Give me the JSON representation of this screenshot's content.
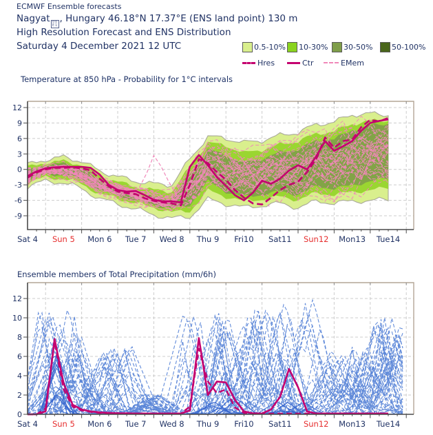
{
  "header": {
    "product": "ECMWF Ensemble forecasts",
    "location_prefix": "Nagyat",
    "missing_glyph_hex": [
      "0",
      "0",
      "E",
      "1"
    ],
    "location_suffix": ", Hungary 46.18°N 17.37°E (ENS land point) 130 m",
    "subtitle": "High Resolution Forecast and ENS Distribution",
    "run_date": "Saturday  4 December 2021 12 UTC"
  },
  "legend": {
    "classes": [
      {
        "label": "0.5-10%",
        "color": "#d9ef8d"
      },
      {
        "label": "10-30%",
        "color": "#8ad31e"
      },
      {
        "label": "30-50%",
        "color": "#7f9e4a"
      },
      {
        "label": "50-100%",
        "color": "#4a661b"
      }
    ],
    "lines": [
      {
        "label": "Hres",
        "style": "bold-dashed"
      },
      {
        "label": "Ctr",
        "style": "bold-solid"
      },
      {
        "label": "EMem",
        "style": "thin-dashed"
      }
    ]
  },
  "colors": {
    "navy_text": "#203264",
    "sunday_red": "#e62e2e",
    "crimson_line": "#c4006f",
    "emem_pink": "#f087b9",
    "prob_light": "#d9ef8d",
    "prob_mid": "#97d42c",
    "prob_olive": "#7f9e4a",
    "member_blue_dashed": "#5b86d8",
    "member_blue_solid": "#3565ce",
    "grid_gray": "#cccccc",
    "axis_dark": "#4a4a4a",
    "border_tan": "#b3a596"
  },
  "chart_data": [
    {
      "type": "area",
      "title": "Temperature at 850 hPa - Probability for 1°C intervals",
      "x_day_labels": [
        "Sat 4",
        "Sun 5",
        "Mon 6",
        "Tue 7",
        "Wed 8",
        "Thu 9",
        "Fri10",
        "Sat11",
        "Sun12",
        "Mon13",
        "Tue14"
      ],
      "sunday_indices": [
        1,
        8
      ],
      "ylabel_unit": "°C",
      "yticks": [
        -9,
        -6,
        -3,
        0,
        3,
        6,
        9,
        12
      ],
      "ylim": [
        -11.6,
        13.8
      ],
      "t_step_bands": 0.5,
      "t_step_lines": 0.25,
      "band_outer_top": [
        0.9,
        1.9,
        2.4,
        1.6,
        -0.3,
        -1.4,
        -2.3,
        -2.8,
        -3.0,
        2.0,
        6.4,
        6.0,
        5.2,
        5.6,
        6.6,
        7.2,
        8.7,
        9.2,
        10.6,
        10.8,
        10.6
      ],
      "band_outer_bottom": [
        -3.4,
        -2.2,
        -2.6,
        -3.7,
        -5.7,
        -6.7,
        -7.7,
        -8.8,
        -9.5,
        -9.2,
        -5.8,
        -6.7,
        -7.4,
        -7.0,
        -6.6,
        -7.4,
        -6.2,
        -6.5,
        -6.2,
        -6.0,
        -5.9
      ],
      "band_mid_top": [
        0.4,
        1.3,
        1.6,
        0.9,
        -1.3,
        -2.4,
        -3.4,
        -4.0,
        -4.3,
        0.4,
        5.2,
        4.6,
        3.2,
        3.8,
        4.8,
        5.5,
        6.9,
        7.4,
        8.8,
        9.4,
        9.5
      ],
      "band_mid_bottom": [
        -2.7,
        -1.5,
        -1.8,
        -2.8,
        -4.8,
        -5.6,
        -6.6,
        -7.4,
        -8.3,
        -8.1,
        -4.1,
        -5.3,
        -6.1,
        -5.8,
        -5.3,
        -5.9,
        -4.6,
        -4.9,
        -4.4,
        -4.0,
        -3.6
      ],
      "band_inner_top": [
        -0.4,
        0.9,
        1.1,
        0.4,
        -2.3,
        -3.4,
        -4.9,
        -5.4,
        -5.6,
        -1.0,
        3.9,
        2.7,
        1.3,
        2.1,
        3.3,
        3.9,
        5.5,
        5.9,
        7.6,
        8.5,
        8.9
      ],
      "band_inner_bottom": [
        -2.3,
        -0.9,
        -1.1,
        -2.0,
        -4.1,
        -5.0,
        -6.1,
        -6.9,
        -7.6,
        -6.9,
        -2.3,
        -4.3,
        -5.3,
        -4.9,
        -4.3,
        -4.9,
        -3.3,
        -3.7,
        -3.1,
        -2.3,
        -1.7
      ],
      "ctr": [
        -1.3,
        -0.4,
        0.2,
        0.4,
        0.5,
        0.5,
        0.5,
        0.3,
        -1.0,
        -3.0,
        -4.0,
        -4.3,
        -4.2,
        -5.0,
        -5.9,
        -6.2,
        -6.2,
        -6.4,
        0.5,
        2.8,
        0.8,
        -1.5,
        -3.2,
        -5.0,
        -6.0,
        -4.5,
        -2.2,
        -2.8,
        -1.8,
        -0.2,
        0.8,
        0.0,
        2.5,
        5.5,
        3.6,
        4.5,
        5.5,
        7.5,
        9.0,
        9.4,
        9.7
      ],
      "hres": [
        -1.6,
        -0.6,
        0.0,
        0.3,
        0.3,
        0.4,
        0.2,
        -0.2,
        -1.8,
        -3.3,
        -4.3,
        -4.6,
        -4.8,
        -5.6,
        -6.1,
        -6.4,
        -6.6,
        -7.0,
        -3.0,
        2.0,
        1.2,
        -0.5,
        -2.0,
        -4.0,
        -5.5,
        -6.6,
        -6.8,
        -5.5,
        -4.0,
        -3.0,
        -2.4,
        -0.5,
        2.0,
        6.2,
        4.2,
        5.5,
        5.8,
        8.2,
        9.6,
        9.3,
        10.0
      ],
      "emem_outliers": [
        [
          [
            3.1,
            -3.5
          ],
          [
            3.3,
            -0.8
          ],
          [
            3.5,
            2.7
          ],
          [
            3.7,
            0.6
          ],
          [
            3.9,
            -2.2
          ],
          [
            4.1,
            -4.6
          ]
        ],
        [
          [
            5.9,
            2.5
          ],
          [
            6.3,
            -2.0
          ],
          [
            6.7,
            -7.2
          ]
        ]
      ],
      "n_members": 40
    },
    {
      "type": "line",
      "title": "Ensemble members of Total Precipitation (mm/6h)",
      "x_day_labels": [
        "Sat 4",
        "Sun 5",
        "Mon 6",
        "Tue 7",
        "Wed 8",
        "Thu 9",
        "Fri10",
        "Sat11",
        "Sun12",
        "Mon13",
        "Tue14"
      ],
      "sunday_indices": [
        1,
        8
      ],
      "ylabel_unit": "mm/6h",
      "yticks": [
        0,
        2,
        4,
        6,
        8,
        10,
        12
      ],
      "ylim": [
        0,
        13.6
      ],
      "t_step_lines": 0.25,
      "ctr": [
        0,
        0,
        0.3,
        7.8,
        3.2,
        1.0,
        0.5,
        0.3,
        0.2,
        0.15,
        0.1,
        0.1,
        0.08,
        0.08,
        0.08,
        0.08,
        0.08,
        0.08,
        0.4,
        7.9,
        2.0,
        3.4,
        3.3,
        1.5,
        0.3,
        0.1,
        0.08,
        0.5,
        1.8,
        4.7,
        2.8,
        0.3,
        0.08,
        0.08,
        0.08,
        0.08,
        0.08,
        0.08,
        0.08,
        0.08,
        0.08
      ],
      "hres": [
        0,
        0,
        0.6,
        7.5,
        2.6,
        0.8,
        0.4,
        0.25,
        0.15,
        0.1,
        0.1,
        0.08,
        0.08,
        0.08,
        0.08,
        0.08,
        0.08,
        0.08,
        0.8,
        6.8,
        3.4,
        2.2,
        2.6,
        0.7,
        0.15,
        0.08,
        0.08,
        0.08,
        0.08,
        0.08,
        0.08,
        0.08,
        0.08,
        0.08,
        0.08,
        0.08,
        0.08,
        0.08,
        0.08,
        0.08,
        0.08
      ],
      "wet_windows": [
        {
          "start": 0.3,
          "end": 1.55,
          "max": 12
        },
        {
          "start": 1.3,
          "end": 2.9,
          "max": 7.6
        },
        {
          "start": 3.1,
          "end": 3.7,
          "max": 2.2
        },
        {
          "start": 4.3,
          "end": 6.3,
          "max": 11
        },
        {
          "start": 6.3,
          "end": 8.3,
          "max": 12
        },
        {
          "start": 8.3,
          "end": 9.6,
          "max": 7.2
        },
        {
          "start": 9.6,
          "end": 10.4,
          "max": 10.5
        }
      ],
      "n_members_dashed": 46,
      "n_members_solid": 8
    }
  ]
}
